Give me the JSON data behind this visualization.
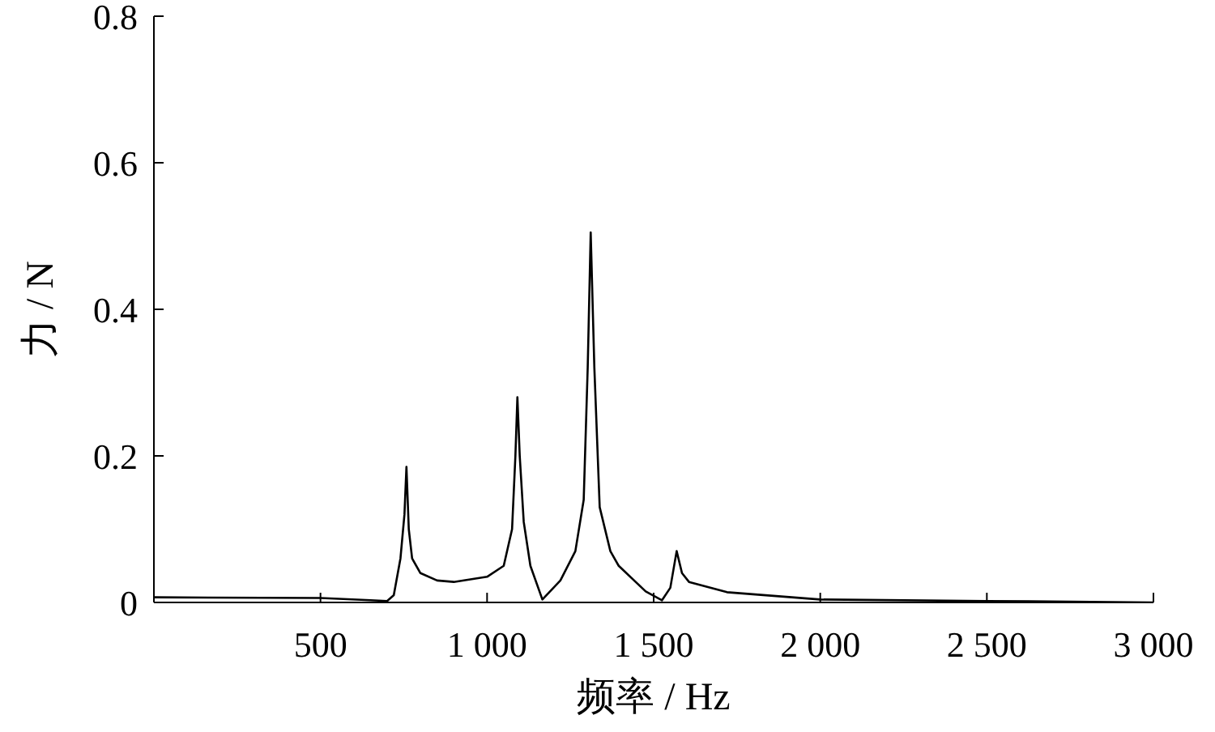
{
  "chart_data": {
    "type": "line",
    "xlabel": "频率 / Hz",
    "ylabel": "力 / N",
    "x": [
      0,
      500,
      650,
      700,
      720,
      740,
      752,
      758,
      765,
      775,
      800,
      850,
      900,
      1000,
      1050,
      1075,
      1085,
      1091,
      1098,
      1110,
      1130,
      1166,
      1220,
      1265,
      1290,
      1302,
      1311,
      1322,
      1338,
      1370,
      1395,
      1476,
      1525,
      1550,
      1569,
      1585,
      1606,
      1720,
      2000,
      2500,
      3000
    ],
    "series": [
      {
        "color": "#000000",
        "values": [
          0.007,
          0.006,
          0.003,
          0.002,
          0.01,
          0.06,
          0.12,
          0.185,
          0.1,
          0.06,
          0.04,
          0.03,
          0.028,
          0.035,
          0.05,
          0.1,
          0.2,
          0.28,
          0.2,
          0.11,
          0.05,
          0.004,
          0.03,
          0.07,
          0.14,
          0.32,
          0.505,
          0.32,
          0.13,
          0.07,
          0.05,
          0.015,
          0.003,
          0.02,
          0.07,
          0.04,
          0.028,
          0.014,
          0.004,
          0.002,
          0
        ]
      }
    ],
    "xlim": [
      0,
      3000
    ],
    "xticks": [
      {
        "value": 500,
        "label": "500"
      },
      {
        "value": 1000,
        "label": "1 000"
      },
      {
        "value": 1500,
        "label": "1 500"
      },
      {
        "value": 2000,
        "label": "2 000"
      },
      {
        "value": 2500,
        "label": "2 500"
      },
      {
        "value": 3000,
        "label": "3 000"
      }
    ],
    "ylim": [
      0,
      0.8
    ],
    "yticks": [
      0,
      {
        "value": 0.2,
        "label": "0.2"
      },
      {
        "value": 0.4,
        "label": "0.4"
      },
      {
        "value": 0.6,
        "label": "0.6"
      },
      {
        "value": 0.8,
        "label": "0.8"
      }
    ],
    "grid": false,
    "legend": false,
    "marker": "none",
    "line_style": "solid"
  }
}
